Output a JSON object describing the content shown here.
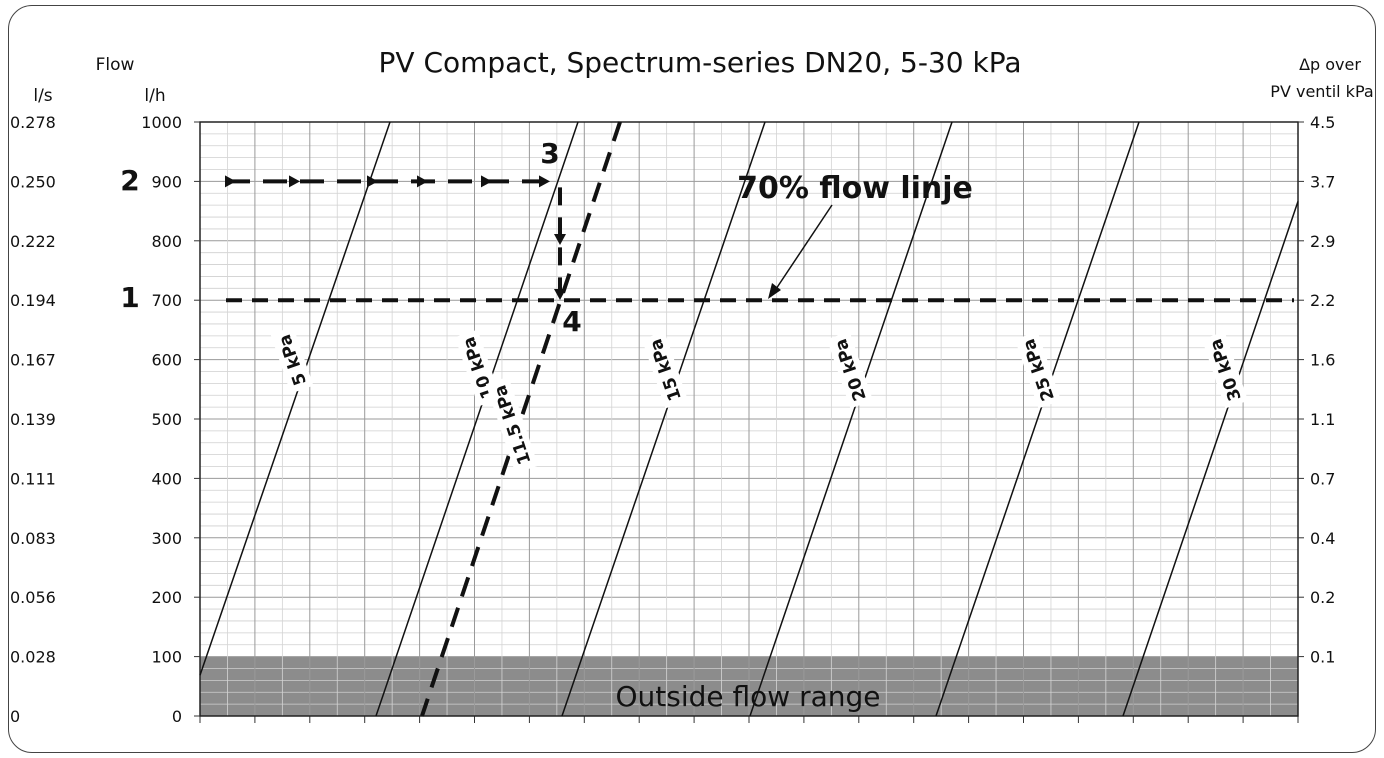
{
  "chart_data": {
    "type": "line",
    "title": "PV Compact, Spectrum-series DN20, 5-30 kPa",
    "left_axis_title": "Flow",
    "left_axis_units": [
      "l/s",
      "l/h"
    ],
    "right_axis_title": [
      "Δp over",
      "PV ventil kPa"
    ],
    "ylim": [
      0,
      1000
    ],
    "left_ticks_lh": [
      "1000",
      "900",
      "800",
      "700",
      "600",
      "500",
      "400",
      "300",
      "200",
      "100",
      "0"
    ],
    "left_ticks_ls": [
      "0.278",
      "0.250",
      "0.222",
      "0.194",
      "0.167",
      "0.139",
      "0.111",
      "0.083",
      "0.056",
      "0.028",
      "0"
    ],
    "right_ticks": [
      "4.5",
      "3.7",
      "2.9",
      "2.2",
      "1.6",
      "1.1",
      "0.7",
      "0.4",
      "0.2",
      "0.1"
    ],
    "grid": true,
    "shaded_region": {
      "from": 0,
      "to": 100,
      "label": "Outside flow range",
      "color": "#8c8c8c"
    },
    "series": [
      {
        "name": "5 kPa",
        "style": "solid"
      },
      {
        "name": "10 kPa",
        "style": "solid"
      },
      {
        "name": "11.5 kPa",
        "style": "dashed"
      },
      {
        "name": "15 kPa",
        "style": "solid"
      },
      {
        "name": "20 kPa",
        "style": "solid"
      },
      {
        "name": "25 kPa",
        "style": "solid"
      },
      {
        "name": "30 kPa",
        "style": "solid"
      }
    ],
    "reference_lines": [
      {
        "label": "70% flow linje",
        "flow": 700
      },
      {
        "flow": 900
      }
    ],
    "step_markers": [
      {
        "label": "1",
        "flow": 700
      },
      {
        "label": "2",
        "flow": 900
      },
      {
        "label": "3"
      },
      {
        "label": "4"
      }
    ]
  }
}
